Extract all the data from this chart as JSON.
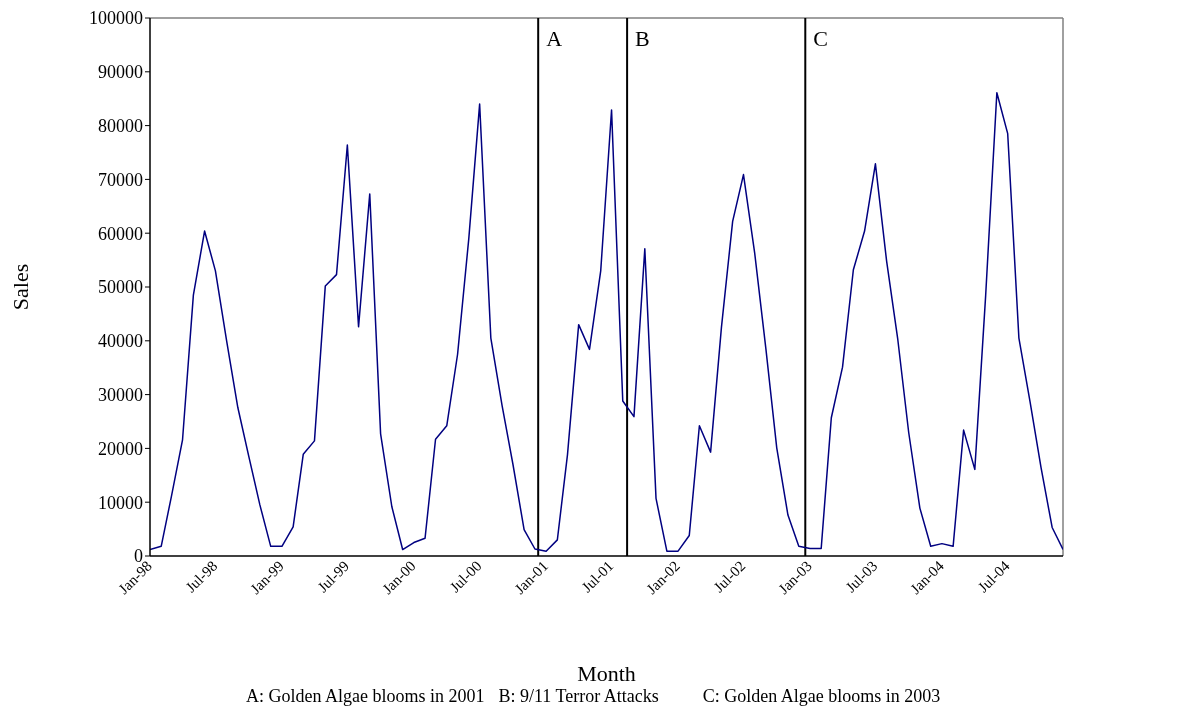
{
  "chart_data": {
    "type": "line",
    "xlabel": "Month",
    "ylabel": "Sales",
    "x": [
      "1998-01",
      "1998-02",
      "1998-03",
      "1998-04",
      "1998-05",
      "1998-06",
      "1998-07",
      "1998-08",
      "1998-09",
      "1998-10",
      "1998-11",
      "1998-12",
      "1999-01",
      "1999-02",
      "1999-03",
      "1999-04",
      "1999-05",
      "1999-06",
      "1999-07",
      "1999-08",
      "1999-09",
      "1999-10",
      "1999-11",
      "1999-12",
      "2000-01",
      "2000-02",
      "2000-03",
      "2000-04",
      "2000-05",
      "2000-06",
      "2000-07",
      "2000-08",
      "2000-09",
      "2000-10",
      "2000-11",
      "2000-12",
      "2001-01",
      "2001-02",
      "2001-03",
      "2001-04",
      "2001-05",
      "2001-06",
      "2001-07",
      "2001-08",
      "2001-09",
      "2001-10",
      "2001-11",
      "2001-12",
      "2002-01",
      "2002-02",
      "2002-03",
      "2002-04",
      "2002-05",
      "2002-06",
      "2002-07",
      "2002-08",
      "2002-09",
      "2002-10",
      "2002-11",
      "2002-12",
      "2003-01",
      "2003-02",
      "2003-03",
      "2003-04",
      "2003-05",
      "2003-06",
      "2003-07",
      "2003-08",
      "2003-09",
      "2003-10",
      "2003-11",
      "2003-12",
      "2004-01",
      "2004-02",
      "2004-03",
      "2004-04",
      "2004-05",
      "2004-06",
      "2004-07",
      "2004-08",
      "2004-09",
      "2004-10",
      "2004-11",
      "2004-12"
    ],
    "series": [
      {
        "color": "#000080",
        "values": [
          1200,
          1800,
          11000,
          21600,
          48500,
          60400,
          53000,
          40000,
          27600,
          18600,
          9500,
          1800,
          1800,
          5400,
          18900,
          21400,
          50200,
          52300,
          76400,
          42600,
          67300,
          22700,
          9200,
          1200,
          2500,
          3300,
          21700,
          24200,
          37500,
          59000,
          84000,
          40500,
          28000,
          17100,
          4900,
          1300,
          900,
          3000,
          18800,
          43000,
          38400,
          53000,
          82900,
          28800,
          25900,
          57100,
          10700,
          900,
          900,
          3800,
          24200,
          19300,
          42500,
          62200,
          70900,
          56300,
          38500,
          20100,
          7600,
          1800,
          1400,
          1400,
          25700,
          35100,
          53200,
          60400,
          72900,
          54800,
          40200,
          23000,
          8900,
          1800,
          2300,
          1800,
          23400,
          16100,
          48400,
          86100,
          78500,
          40500,
          28600,
          16500,
          5300,
          1200
        ]
      }
    ],
    "xlim": [
      "1998-01",
      "2004-12"
    ],
    "xticks": [
      {
        "value": "1998-01",
        "label": "Jan-98"
      },
      {
        "value": "1998-07",
        "label": "Jul-98"
      },
      {
        "value": "1999-01",
        "label": "Jan-99"
      },
      {
        "value": "1999-07",
        "label": "Jul-99"
      },
      {
        "value": "2000-01",
        "label": "Jan-00"
      },
      {
        "value": "2000-07",
        "label": "Jul-00"
      },
      {
        "value": "2001-01",
        "label": "Jan-01"
      },
      {
        "value": "2001-07",
        "label": "Jul-01"
      },
      {
        "value": "2002-01",
        "label": "Jan-02"
      },
      {
        "value": "2002-07",
        "label": "Jul-02"
      },
      {
        "value": "2003-01",
        "label": "Jan-03"
      },
      {
        "value": "2003-07",
        "label": "Jul-03"
      },
      {
        "value": "2004-01",
        "label": "Jan-04"
      },
      {
        "value": "2004-07",
        "label": "Jul-04"
      }
    ],
    "ylim": [
      0,
      100000
    ],
    "yticks": [
      0,
      10000,
      20000,
      30000,
      40000,
      50000,
      60000,
      70000,
      80000,
      90000,
      100000
    ],
    "ref_lines": [
      {
        "axis": "x",
        "value": "2000-12-10",
        "label": "A",
        "color": "#000000"
      },
      {
        "axis": "x",
        "value": "2001-08-13",
        "label": "B",
        "color": "#000000"
      },
      {
        "axis": "x",
        "value": "2002-12-19",
        "label": "C",
        "color": "#000000"
      }
    ],
    "annotations": [
      "A: Golden Algae blooms in 2001",
      "B: 9/11 Terror Attacks",
      "C: Golden Algae blooms in 2003"
    ],
    "grid": false,
    "legend": false,
    "marker": "none",
    "line_style": "solid"
  }
}
